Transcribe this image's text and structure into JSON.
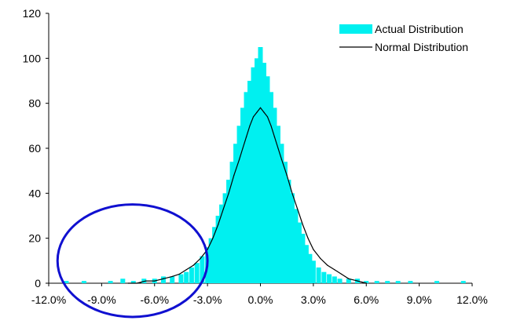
{
  "chart_data": {
    "type": "bar",
    "title": "",
    "xlabel": "",
    "ylabel": "",
    "xlim": [
      -0.12,
      0.12
    ],
    "ylim": [
      0,
      120
    ],
    "x_ticks": [
      -0.12,
      -0.09,
      -0.06,
      -0.03,
      0.0,
      0.03,
      0.06,
      0.09,
      0.12
    ],
    "x_tick_labels": [
      "-12.0%",
      "-9.0%",
      "-6.0%",
      "-3.0%",
      "0.0%",
      "3.0%",
      "6.0%",
      "9.0%",
      "12.0%"
    ],
    "y_ticks": [
      0,
      20,
      40,
      60,
      80,
      100,
      120
    ],
    "y_tick_labels": [
      "0",
      "20",
      "40",
      "60",
      "80",
      "100",
      "120"
    ],
    "grid": false,
    "legend_position": "top-right",
    "colors": {
      "actual": "#00f0f0",
      "normal": "#000000",
      "annotation": "#1010d0"
    },
    "series": [
      {
        "name": "Actual Distribution",
        "kind": "histogram",
        "x": [
          -0.11,
          -0.1,
          -0.085,
          -0.078,
          -0.072,
          -0.066,
          -0.06,
          -0.055,
          -0.05,
          -0.045,
          -0.042,
          -0.039,
          -0.036,
          -0.033,
          -0.03,
          -0.028,
          -0.026,
          -0.024,
          -0.022,
          -0.02,
          -0.018,
          -0.016,
          -0.014,
          -0.012,
          -0.01,
          -0.008,
          -0.006,
          -0.004,
          -0.002,
          0.0,
          0.002,
          0.004,
          0.006,
          0.008,
          0.01,
          0.012,
          0.014,
          0.016,
          0.018,
          0.02,
          0.022,
          0.024,
          0.026,
          0.028,
          0.03,
          0.033,
          0.036,
          0.039,
          0.042,
          0.045,
          0.05,
          0.055,
          0.06,
          0.066,
          0.072,
          0.078,
          0.085,
          0.1,
          0.115
        ],
        "values": [
          1,
          1,
          1,
          2,
          1,
          2,
          2,
          3,
          3,
          4,
          5,
          7,
          9,
          12,
          16,
          20,
          25,
          30,
          35,
          40,
          46,
          54,
          62,
          70,
          78,
          85,
          90,
          96,
          100,
          105,
          98,
          92,
          85,
          78,
          70,
          62,
          54,
          46,
          40,
          33,
          27,
          22,
          17,
          13,
          10,
          7,
          5,
          4,
          3,
          2,
          2,
          2,
          1,
          1,
          1,
          1,
          1,
          1,
          1
        ]
      },
      {
        "name": "Normal Distribution",
        "kind": "line",
        "x": [
          -0.075,
          -0.07,
          -0.065,
          -0.06,
          -0.055,
          -0.05,
          -0.046,
          -0.042,
          -0.038,
          -0.034,
          -0.03,
          -0.027,
          -0.024,
          -0.021,
          -0.018,
          -0.015,
          -0.012,
          -0.01,
          -0.008,
          -0.006,
          -0.004,
          -0.002,
          0.0,
          0.002,
          0.004,
          0.006,
          0.008,
          0.01,
          0.012,
          0.015,
          0.018,
          0.021,
          0.024,
          0.027,
          0.03,
          0.034,
          0.038,
          0.042,
          0.046,
          0.05,
          0.055,
          0.06
        ],
        "values": [
          0,
          0,
          1,
          1,
          2,
          3,
          4,
          6,
          8,
          11,
          15,
          20,
          26,
          33,
          40,
          48,
          55,
          60,
          65,
          70,
          74,
          76,
          78,
          76,
          74,
          70,
          65,
          60,
          55,
          48,
          40,
          33,
          26,
          20,
          15,
          11,
          8,
          6,
          4,
          2,
          1,
          0
        ]
      }
    ],
    "annotation": {
      "shape": "ellipse",
      "around_x": [
        -0.115,
        -0.03
      ],
      "around_y": [
        -15,
        35
      ]
    }
  }
}
